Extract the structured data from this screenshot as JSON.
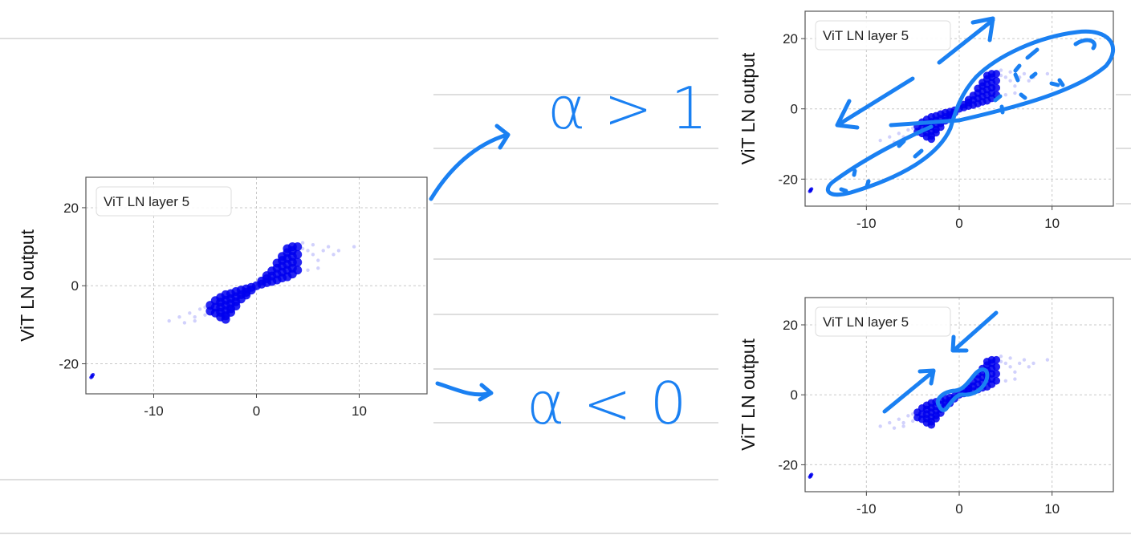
{
  "annotations": {
    "upper_label": "α > 1",
    "lower_label": "α < 0",
    "ink_color": "#1a80f2"
  },
  "chart_data": {
    "type": "scatter",
    "legend": "ViT LN layer 5",
    "ylabel": "ViT LN output",
    "xlabel": "",
    "xlim": [
      -16.6,
      16.6
    ],
    "ylim": [
      -27.7,
      27.8
    ],
    "xticks": [
      "-10",
      "0",
      "10"
    ],
    "xtick_values": [
      -10,
      0,
      10
    ],
    "yticks": [
      "20",
      "0",
      "-20"
    ],
    "ytick_values": [
      20,
      0,
      -20
    ],
    "grid": true,
    "point_color": "#0000ee",
    "panels": [
      {
        "legend": "ViT LN layer 5",
        "ylabel": "ViT LN output"
      },
      {
        "legend": "ViT LN layer 5",
        "ylabel": "ViT LN output"
      },
      {
        "legend": "ViT LN layer 5",
        "ylabel": "ViT LN output"
      }
    ],
    "core_points": [
      [
        0,
        0
      ],
      [
        0.5,
        0.4
      ],
      [
        0.5,
        1.2
      ],
      [
        1,
        0.8
      ],
      [
        1,
        1.8
      ],
      [
        1,
        2.6
      ],
      [
        1.5,
        1.1
      ],
      [
        1.5,
        2.5
      ],
      [
        1.5,
        3.8
      ],
      [
        2,
        1.5
      ],
      [
        2,
        3
      ],
      [
        2,
        4.5
      ],
      [
        2,
        5.8
      ],
      [
        2.5,
        2
      ],
      [
        2.5,
        3.5
      ],
      [
        2.5,
        5
      ],
      [
        2.5,
        6.5
      ],
      [
        2.5,
        7.5
      ],
      [
        3,
        2.3
      ],
      [
        3,
        4
      ],
      [
        3,
        5.5
      ],
      [
        3,
        7
      ],
      [
        3,
        8.5
      ],
      [
        3,
        9.5
      ],
      [
        3.5,
        3
      ],
      [
        3.5,
        4.5
      ],
      [
        3.5,
        6
      ],
      [
        3.5,
        7.5
      ],
      [
        3.5,
        9
      ],
      [
        3.5,
        10
      ],
      [
        4,
        4
      ],
      [
        4,
        6
      ],
      [
        4,
        8
      ],
      [
        4,
        10
      ],
      [
        -0.5,
        -0.4
      ],
      [
        -0.5,
        -1.1
      ],
      [
        -1,
        -0.8
      ],
      [
        -1,
        -1.7
      ],
      [
        -1,
        -2.4
      ],
      [
        -1.5,
        -1.1
      ],
      [
        -1.5,
        -2.3
      ],
      [
        -1.5,
        -3.4
      ],
      [
        -2,
        -1.5
      ],
      [
        -2,
        -2.8
      ],
      [
        -2,
        -4.1
      ],
      [
        -2,
        -5.2
      ],
      [
        -2.5,
        -2
      ],
      [
        -2.5,
        -3.3
      ],
      [
        -2.5,
        -4.6
      ],
      [
        -2.5,
        -5.9
      ],
      [
        -2.5,
        -6.8
      ],
      [
        -3,
        -2.3
      ],
      [
        -3,
        -3.7
      ],
      [
        -3,
        -5
      ],
      [
        -3,
        -6.4
      ],
      [
        -3,
        -7.7
      ],
      [
        -3,
        -8.6
      ],
      [
        -3.5,
        -3
      ],
      [
        -3.5,
        -4.2
      ],
      [
        -3.5,
        -5.5
      ],
      [
        -3.5,
        -6.8
      ],
      [
        -3.5,
        -8
      ],
      [
        -4,
        -3.8
      ],
      [
        -4,
        -5.5
      ],
      [
        -4,
        -7
      ],
      [
        -4.5,
        -5
      ],
      [
        -4.5,
        -6.5
      ]
    ],
    "sparse_points": [
      [
        -8.5,
        -9
      ],
      [
        -7.5,
        -8
      ],
      [
        -7,
        -9.5
      ],
      [
        -6.5,
        -7
      ],
      [
        -6,
        -8
      ],
      [
        -5.5,
        -6
      ],
      [
        -5,
        -7.5
      ],
      [
        -5,
        -5.5
      ],
      [
        -6,
        -9
      ],
      [
        4.5,
        9.5
      ],
      [
        5,
        9
      ],
      [
        5.5,
        8
      ],
      [
        6,
        6.5
      ],
      [
        6.5,
        9
      ],
      [
        7,
        10
      ],
      [
        7.5,
        8
      ],
      [
        8,
        9
      ],
      [
        9.5,
        10
      ],
      [
        5,
        4
      ],
      [
        6,
        4.5
      ],
      [
        4.5,
        11
      ],
      [
        5.5,
        10.5
      ]
    ],
    "outlier_points": [
      [
        -16,
        -23
      ],
      [
        -16.1,
        -23.5
      ],
      [
        -15.9,
        -22.8
      ],
      [
        -16,
        -23.3
      ]
    ]
  }
}
